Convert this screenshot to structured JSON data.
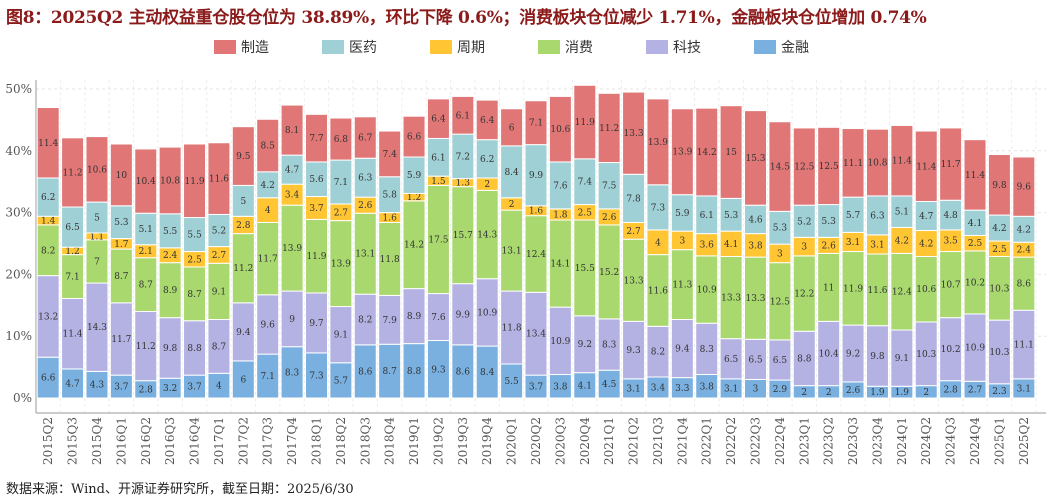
{
  "title": "图8：2025Q2 主动权益重仓股仓位为 38.89%，环比下降 0.6%；消费板块仓位减少 1.71%，金融板块仓位增加 0.74%",
  "footer": "数据来源：Wind、开源证券研究所，截至日期：2025/6/30",
  "chart_data": {
    "type": "bar",
    "stacked": true,
    "title": "",
    "xlabel": "",
    "ylabel": "",
    "ylim": [
      0,
      50
    ],
    "yticks": [
      "0%",
      "10%",
      "20%",
      "30%",
      "40%",
      "50%"
    ],
    "grid": true,
    "legend_position": "top",
    "categories": [
      "2015Q2",
      "2015Q3",
      "2015Q4",
      "2016Q1",
      "2016Q2",
      "2016Q3",
      "2016Q4",
      "2017Q1",
      "2017Q2",
      "2017Q3",
      "2017Q4",
      "2018Q1",
      "2018Q2",
      "2018Q3",
      "2018Q4",
      "2019Q1",
      "2019Q2",
      "2019Q3",
      "2019Q4",
      "2020Q1",
      "2020Q2",
      "2020Q3",
      "2020Q4",
      "2021Q1",
      "2021Q2",
      "2021Q3",
      "2021Q4",
      "2022Q1",
      "2022Q2",
      "2022Q3",
      "2022Q4",
      "2023Q1",
      "2023Q2",
      "2023Q3",
      "2023Q4",
      "2024Q1",
      "2024Q2",
      "2024Q3",
      "2024Q4",
      "2025Q1",
      "2025Q2"
    ],
    "legend_order": [
      "制造",
      "医药",
      "周期",
      "消费",
      "科技",
      "金融"
    ],
    "series": [
      {
        "name": "金融",
        "color": "#79b0e0",
        "values": [
          6.6,
          4.7,
          4.3,
          3.7,
          2.8,
          3.2,
          3.7,
          4,
          6,
          7.1,
          8.3,
          7.3,
          5.7,
          8.6,
          8.7,
          8.8,
          9.3,
          8.6,
          8.4,
          5.5,
          3.7,
          3.8,
          4.1,
          4.5,
          3.1,
          3.4,
          3.3,
          3.8,
          3.1,
          3,
          2.9,
          2,
          2,
          2.6,
          1.9,
          1.9,
          2,
          2.8,
          2.7,
          2.3,
          3.1
        ]
      },
      {
        "name": "科技",
        "color": "#b4b1e3",
        "values": [
          13.2,
          11.4,
          14.3,
          11.7,
          11.2,
          9.8,
          8.8,
          8.7,
          9.4,
          9.6,
          9,
          9.7,
          9.1,
          8.2,
          7.9,
          8.9,
          7.6,
          9.9,
          10.9,
          11.8,
          13.4,
          10.9,
          9.2,
          8.3,
          9.3,
          8.2,
          9.4,
          8.3,
          6.5,
          6.5,
          6.5,
          8.8,
          10.4,
          9.2,
          9.8,
          9.1,
          10.3,
          10.2,
          10.9,
          10.3,
          11.1
        ]
      },
      {
        "name": "消费",
        "color": "#a8d86e",
        "values": [
          8.2,
          7.1,
          7,
          8.7,
          8.7,
          8.9,
          8.7,
          9.1,
          11.2,
          11.7,
          13.9,
          11.9,
          13.9,
          13.1,
          11.8,
          14.2,
          17.5,
          15.7,
          14.3,
          13.1,
          12.4,
          14.1,
          15.5,
          15.2,
          13.3,
          11.6,
          11.3,
          10.9,
          13.3,
          13.3,
          12.5,
          12.2,
          11,
          11.9,
          11.6,
          12.4,
          10.6,
          10.7,
          10.2,
          10.3,
          8.6
        ]
      },
      {
        "name": "周期",
        "color": "#ffc533",
        "values": [
          1.4,
          1.2,
          1.1,
          1.7,
          2.1,
          2.4,
          2.5,
          2.7,
          2.8,
          4,
          3.4,
          3.7,
          2.7,
          2.6,
          1.6,
          1.2,
          1.5,
          1.3,
          2,
          2,
          1.6,
          1.8,
          2.5,
          2.6,
          2.7,
          4,
          3,
          3.6,
          4.1,
          3.8,
          3,
          3,
          2.6,
          3.1,
          3.1,
          4.2,
          4.2,
          3.5,
          2.5,
          2.5,
          2.4
        ]
      },
      {
        "name": "医药",
        "color": "#9fd0d5",
        "values": [
          6.2,
          6.5,
          5,
          5.3,
          5.1,
          5.5,
          5.5,
          5.2,
          5,
          4.2,
          4.7,
          5.6,
          7.1,
          6.3,
          5.8,
          5.9,
          6.1,
          7.2,
          6.2,
          8.4,
          9.9,
          7.6,
          7.4,
          7.5,
          7.8,
          7.3,
          5.9,
          6.1,
          5.3,
          4.6,
          5.3,
          5.2,
          5.3,
          5.7,
          6.3,
          5.1,
          4.7,
          4.8,
          4.1,
          4.2,
          4.2
        ]
      },
      {
        "name": "制造",
        "color": "#e07676",
        "values": [
          11.4,
          11.2,
          10.6,
          10,
          10.4,
          10.8,
          11.9,
          11.6,
          9.5,
          8.5,
          8.1,
          7.7,
          6.8,
          6.7,
          7.4,
          6.6,
          6.4,
          6.1,
          6.4,
          6,
          7.1,
          10.6,
          11.9,
          11.2,
          13.3,
          13.9,
          13.9,
          14.2,
          15,
          15.3,
          14.5,
          12.5,
          12.5,
          11.1,
          10.8,
          11.4,
          11.4,
          11.7,
          11.4,
          9.8,
          9.6
        ]
      }
    ]
  }
}
